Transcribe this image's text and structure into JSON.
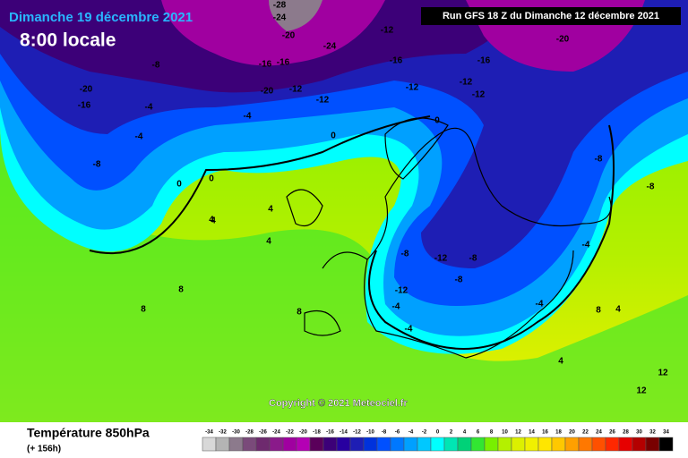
{
  "header": {
    "date": "Dimanche 19 décembre 2021",
    "time": "8:00 locale",
    "run": "Run GFS 18 Z du Dimanche 12 décembre 2021"
  },
  "copyright": "Copyright © 2021 Meteociel.fr",
  "footer": {
    "title": "Température 850hPa",
    "lead": "(+ 156h)"
  },
  "legend": {
    "values": [
      -34,
      -32,
      -30,
      -28,
      -26,
      -24,
      -22,
      -20,
      -18,
      -16,
      -14,
      -12,
      -10,
      -8,
      -6,
      -4,
      -2,
      0,
      2,
      4,
      6,
      8,
      10,
      12,
      14,
      16,
      18,
      20,
      22,
      24,
      26,
      28,
      30,
      32,
      34
    ],
    "colors": [
      "#d8d8d8",
      "#b4b4b4",
      "#8c7a8c",
      "#7a4a7a",
      "#6e2a6e",
      "#8a1a8a",
      "#a000a0",
      "#b400b4",
      "#5a005a",
      "#3c0078",
      "#2800a0",
      "#1e1eb4",
      "#0032dc",
      "#0050ff",
      "#0078ff",
      "#00a0ff",
      "#00c8ff",
      "#00ffff",
      "#00e6b4",
      "#00d278",
      "#32e632",
      "#78f000",
      "#b4f000",
      "#dcf000",
      "#f0f000",
      "#ffe600",
      "#ffc800",
      "#ffa000",
      "#ff7800",
      "#ff5000",
      "#ff2800",
      "#e60000",
      "#b40000",
      "#780000",
      "#000000"
    ]
  },
  "contour_labels": [
    -28,
    -24,
    -20,
    -24,
    -12,
    -20,
    -16,
    -20,
    -16,
    -16,
    -12,
    -12,
    -16,
    -20,
    -12,
    -16,
    -8,
    -8,
    -4,
    -4,
    -4,
    0,
    0,
    0,
    4,
    4,
    4,
    8,
    8,
    8,
    -8,
    -12,
    -8,
    -12,
    -8,
    -4,
    -4,
    -4,
    -4,
    0,
    4,
    4,
    4,
    8,
    12,
    12,
    -12,
    -12,
    -8,
    -8
  ]
}
